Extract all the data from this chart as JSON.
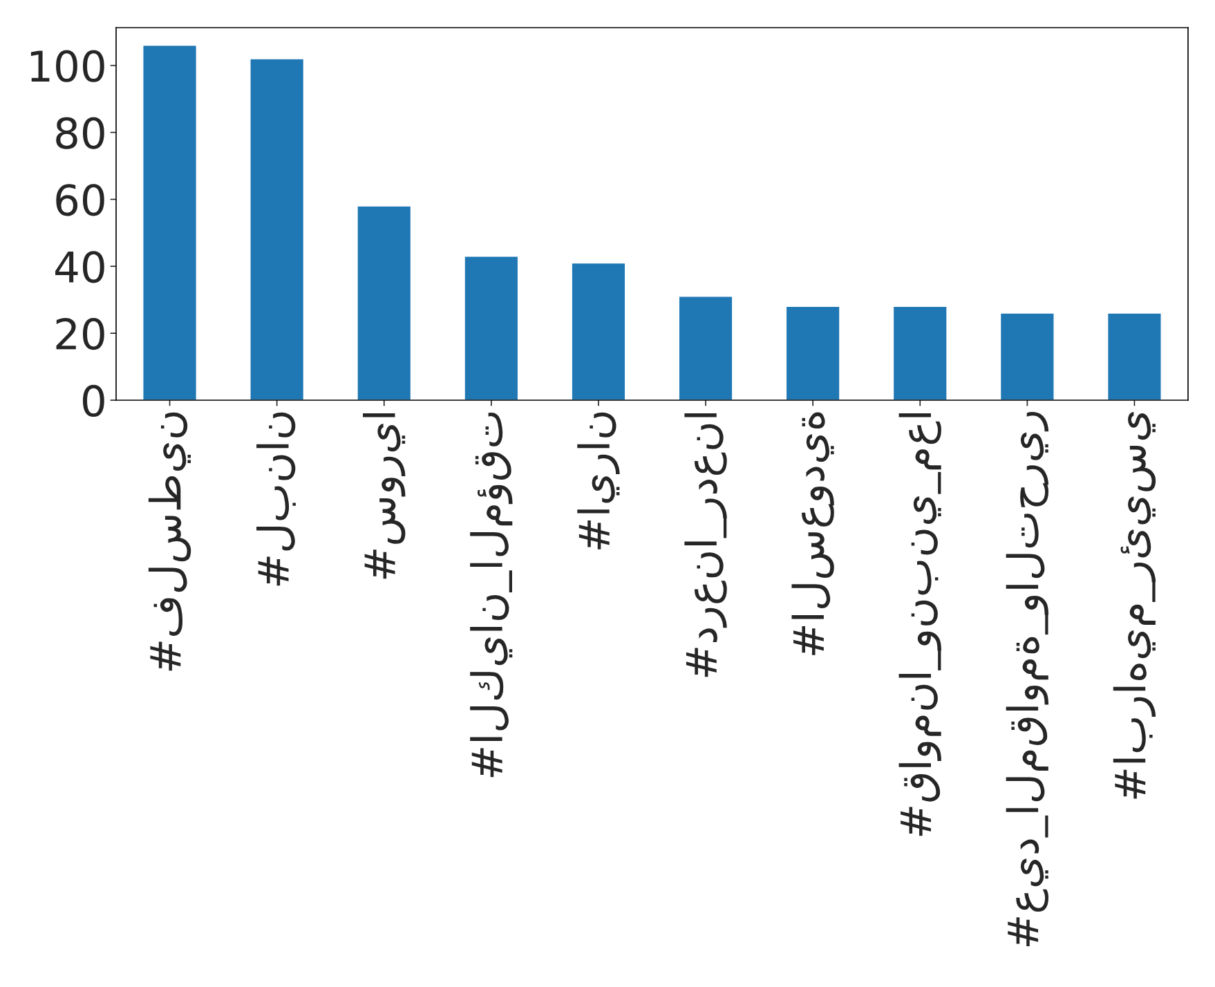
{
  "chart_data": {
    "type": "bar",
    "categories": [
      "#فلسطين",
      "#لبنان",
      "#سوريا",
      "#الكيان_المؤقت",
      "#ايران",
      "#درعنا_ردعنا",
      "#السعودية",
      "#قاومنا_ونبني_معا",
      "#عيد_المقاومة_والتحرير",
      "#ابراهيم_رئيسي"
    ],
    "values": [
      106,
      102,
      58,
      43,
      41,
      31,
      28,
      28,
      26,
      26
    ],
    "color": "#1f77b4",
    "ylim": [
      0,
      111.3
    ],
    "yticks": [
      0,
      20,
      40,
      60,
      80,
      100
    ],
    "grid": false,
    "legend": false
  }
}
